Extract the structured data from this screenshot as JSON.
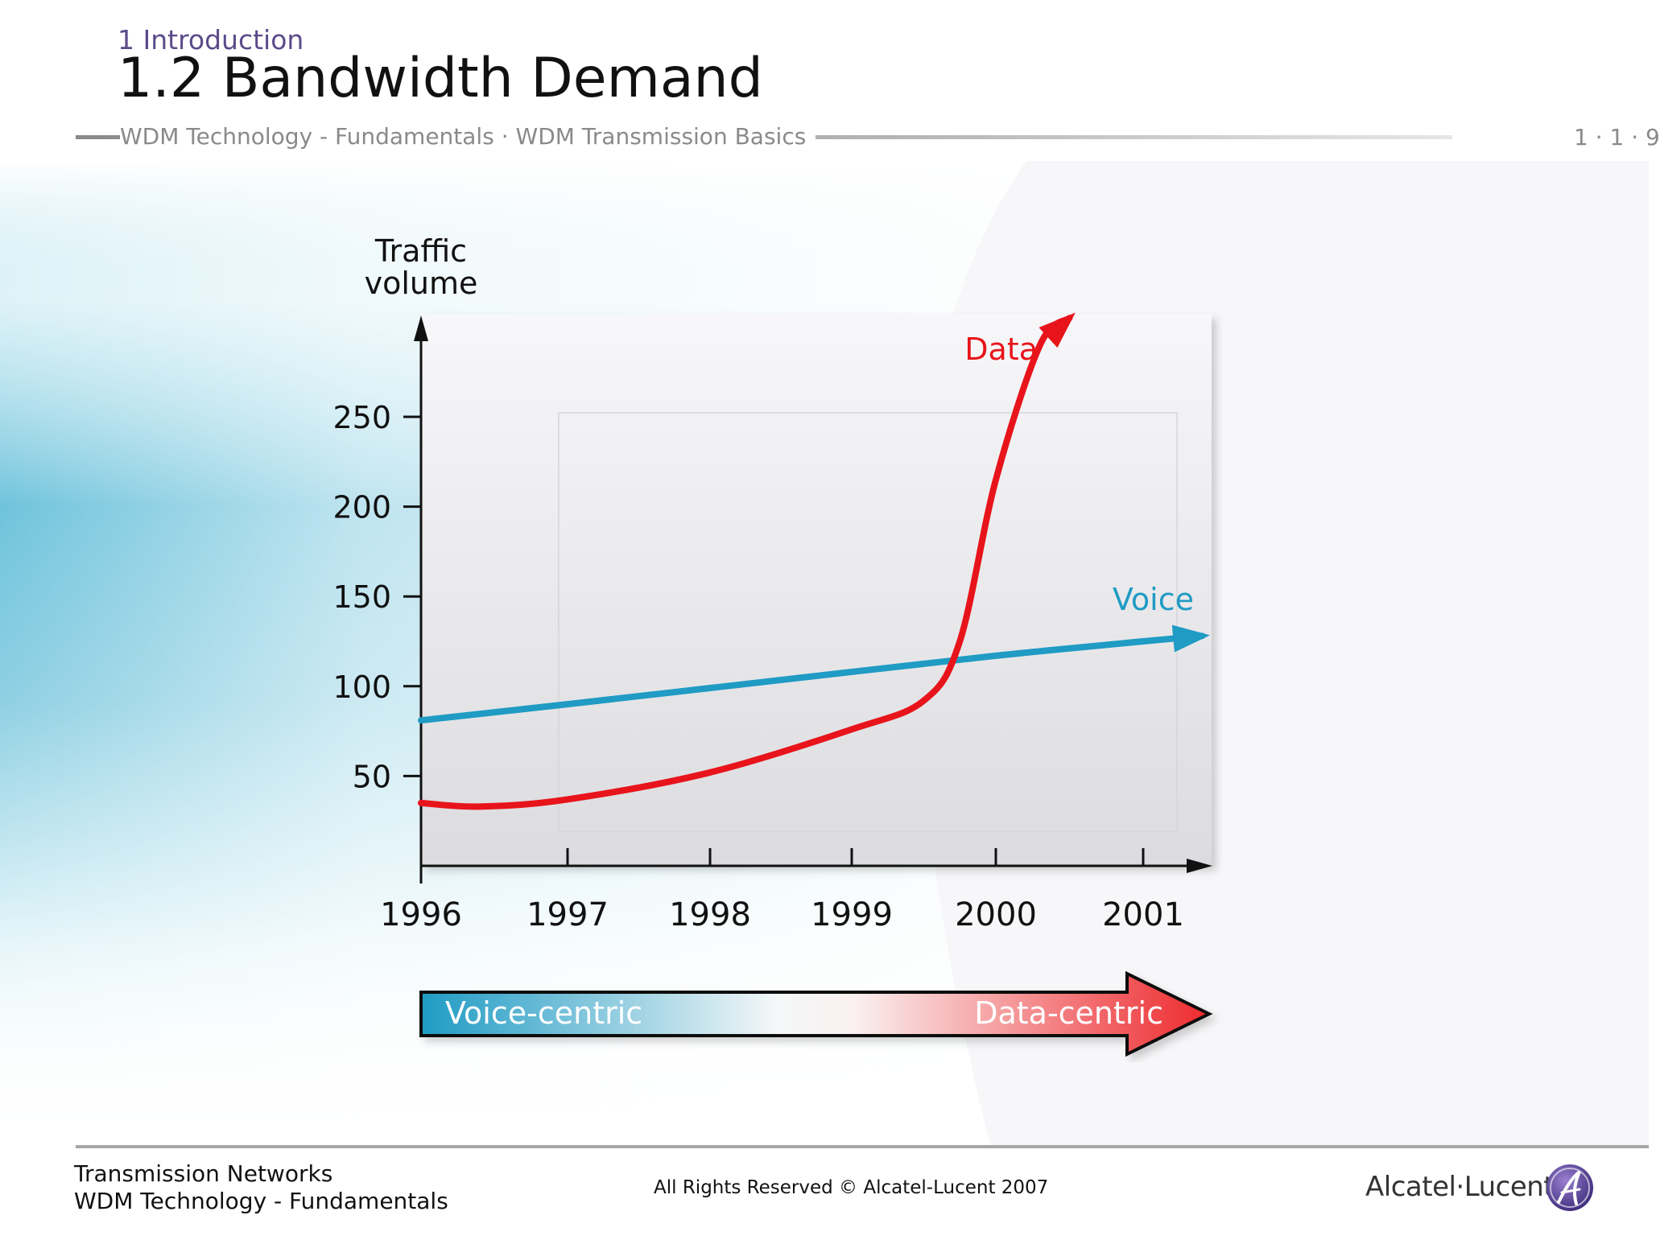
{
  "header": {
    "section": "1 Introduction",
    "title": "1.2 Bandwidth Demand",
    "breadcrumb": "WDM Technology - Fundamentals · WDM Transmission Basics",
    "page": "1 · 1 · 9"
  },
  "footer": {
    "line1": "Transmission Networks",
    "line2": "WDM Technology - Fundamentals",
    "copyright": "All Rights Reserved © Alcatel-Lucent 2007",
    "logo": "Alcatel·Lucent"
  },
  "colors": {
    "data": "#e8141b",
    "voice": "#1f9bc4",
    "title_text": "#111111",
    "section_text": "#5b4b8a",
    "muted": "#8a8a8a"
  },
  "icons": {
    "logo": "alcatel-lucent-logo-icon"
  },
  "chart_data": {
    "type": "line",
    "ylabel": "Traffic\nvolume",
    "xlabel": "",
    "x_ticks": [
      "1996",
      "1997",
      "1998",
      "1999",
      "2000",
      "2001"
    ],
    "y_ticks": [
      50,
      100,
      150,
      200,
      250
    ],
    "xlim": [
      1996,
      2001.5
    ],
    "ylim": [
      0,
      305
    ],
    "grid": false,
    "series": [
      {
        "name": "Voice",
        "color": "#1f9bc4",
        "x": [
          1996,
          1997,
          1998,
          1999,
          2000,
          2001,
          2001.4
        ],
        "y": [
          81,
          90,
          99,
          108,
          117,
          125,
          128
        ]
      },
      {
        "name": "Data",
        "color": "#e8141b",
        "x": [
          1996,
          1996.4,
          1997,
          1998,
          1999,
          1999.5,
          1999.75,
          2000,
          2000.3,
          2000.5
        ],
        "y": [
          35,
          33,
          37,
          52,
          76,
          92,
          125,
          215,
          290,
          305
        ]
      }
    ],
    "transition_arrow": {
      "from": "Voice-centric",
      "to": "Data-centric"
    }
  }
}
